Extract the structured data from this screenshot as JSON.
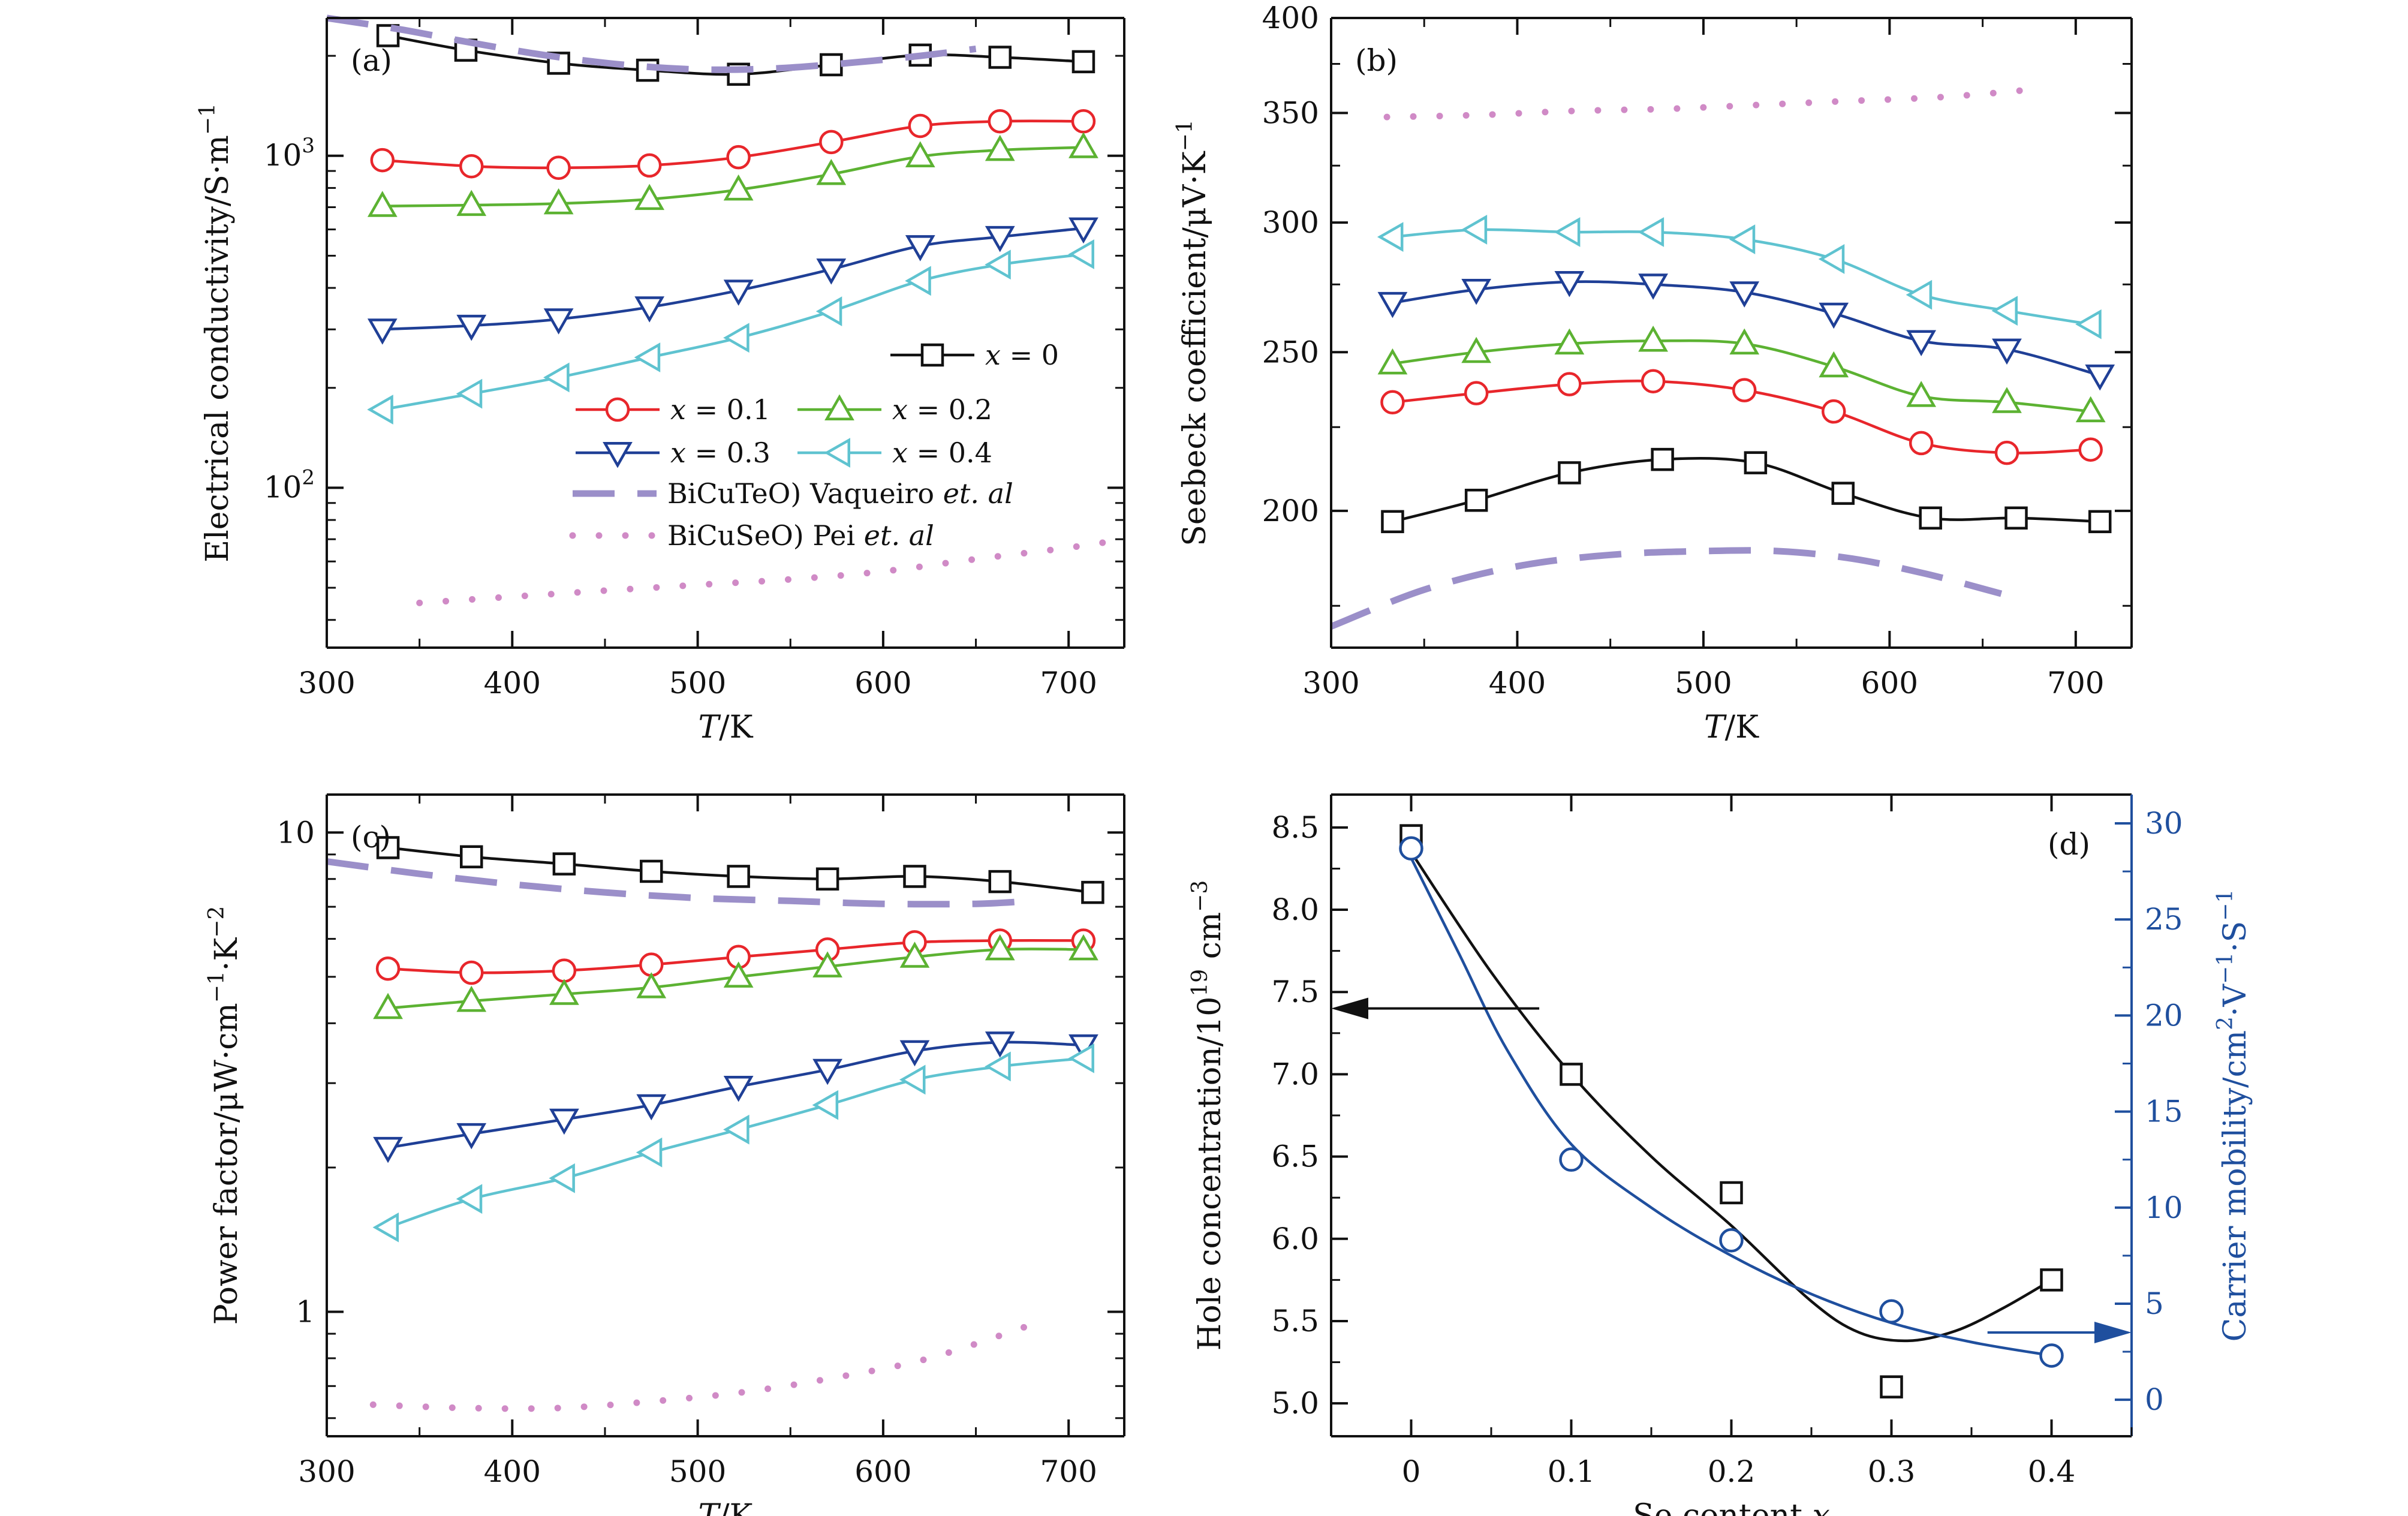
{
  "figure": {
    "colors": {
      "x0": "#111111",
      "x01": "#e8262b",
      "x02": "#5cb232",
      "x03": "#1f3f96",
      "x04": "#5fc3d0",
      "vaqueiro": "#9b8fc9",
      "pei": "#d08ac6",
      "axis_right": "#1f4f9e"
    },
    "legend": [
      {
        "key": "x0",
        "text": "x = 0",
        "marker": "square",
        "style": "solid"
      },
      {
        "key": "x01",
        "text": "x = 0.1",
        "marker": "circle",
        "style": "solid"
      },
      {
        "key": "x02",
        "text": "x = 0.2",
        "marker": "triangle-up",
        "style": "solid"
      },
      {
        "key": "x03",
        "text": "x = 0.3",
        "marker": "triangle-down",
        "style": "solid"
      },
      {
        "key": "x04",
        "text": "x = 0.4",
        "marker": "triangle-left",
        "style": "solid"
      },
      {
        "key": "vaqueiro",
        "text_main": "BiCuTeO) Vaqueiro ",
        "text_ital": "et. al",
        "marker": "none",
        "style": "dashed"
      },
      {
        "key": "pei",
        "text_main": "BiCuSeO) Pei ",
        "text_ital": "et. al",
        "marker": "none",
        "style": "dotted"
      }
    ]
  },
  "chart_data": [
    {
      "panel": "(a)",
      "type": "line",
      "scale_y": "log",
      "xlabel_ital": "T",
      "xlabel_rest": "/K",
      "ylabel": "Electrical conductivity/S·m",
      "ylabel_sup": "−1",
      "xlim": [
        300,
        730
      ],
      "ylim": [
        33,
        2600
      ],
      "xticks": [
        "300",
        "400",
        "500",
        "600",
        "700"
      ],
      "yticks_log": [
        {
          "value": 100,
          "base": "10",
          "exp": "2"
        },
        {
          "value": 1000,
          "base": "10",
          "exp": "3"
        }
      ],
      "series": [
        {
          "key": "x0",
          "x": [
            333,
            375,
            425,
            473,
            522,
            572,
            620,
            663,
            708
          ],
          "y": [
            2300,
            2080,
            1900,
            1810,
            1760,
            1880,
            2010,
            1980,
            1920
          ]
        },
        {
          "key": "x01",
          "x": [
            330,
            378,
            425,
            474,
            522,
            572,
            620,
            663,
            708
          ],
          "y": [
            970,
            930,
            920,
            935,
            990,
            1100,
            1230,
            1270,
            1270
          ]
        },
        {
          "key": "x02",
          "x": [
            330,
            378,
            425,
            474,
            522,
            572,
            620,
            663,
            708
          ],
          "y": [
            705,
            710,
            718,
            740,
            790,
            880,
            995,
            1040,
            1060
          ]
        },
        {
          "key": "x03",
          "x": [
            330,
            378,
            425,
            474,
            522,
            572,
            620,
            663,
            708
          ],
          "y": [
            300,
            308,
            322,
            350,
            393,
            455,
            535,
            570,
            605
          ]
        },
        {
          "key": "x04",
          "x": [
            330,
            378,
            425,
            474,
            522,
            572,
            620,
            663,
            708
          ],
          "y": [
            172,
            192,
            215,
            247,
            283,
            340,
            420,
            470,
            505
          ]
        },
        {
          "key": "vaqueiro",
          "x": [
            300,
            340,
            380,
            420,
            460,
            500,
            540,
            580,
            620,
            650
          ],
          "y": [
            2600,
            2400,
            2180,
            2000,
            1880,
            1820,
            1830,
            1900,
            2000,
            2100
          ]
        },
        {
          "key": "pei",
          "x": [
            350,
            400,
            450,
            500,
            550,
            600,
            650,
            700,
            730
          ],
          "y": [
            45,
            47,
            49,
            51,
            53,
            56,
            61,
            66,
            70
          ]
        }
      ]
    },
    {
      "panel": "(b)",
      "type": "line",
      "scale_y": "log",
      "xlabel_ital": "T",
      "xlabel_rest": "/K",
      "ylabel": "Seebeck coefficient/μV·K",
      "ylabel_sup": "−1",
      "xlim": [
        300,
        730
      ],
      "ylim": [
        165,
        400
      ],
      "xticks": [
        "300",
        "400",
        "500",
        "600",
        "700"
      ],
      "yticks": [
        200,
        250,
        300,
        350,
        400
      ],
      "series": [
        {
          "key": "x0",
          "x": [
            333,
            378,
            428,
            478,
            528,
            575,
            622,
            668,
            713
          ],
          "y": [
            197,
            203,
            211,
            215,
            214,
            205,
            198,
            198,
            197
          ]
        },
        {
          "key": "x01",
          "x": [
            333,
            378,
            428,
            473,
            522,
            570,
            617,
            663,
            708
          ],
          "y": [
            233,
            236,
            239,
            240,
            237,
            230,
            220,
            217,
            218
          ]
        },
        {
          "key": "x02",
          "x": [
            333,
            378,
            428,
            473,
            522,
            570,
            617,
            663,
            708
          ],
          "y": [
            246,
            250,
            253,
            254,
            253,
            245,
            235,
            233,
            230
          ]
        },
        {
          "key": "x03",
          "x": [
            333,
            378,
            428,
            473,
            522,
            570,
            617,
            663,
            713
          ],
          "y": [
            268,
            273,
            276,
            275,
            272,
            264,
            254,
            251,
            242
          ]
        },
        {
          "key": "x04",
          "x": [
            333,
            378,
            428,
            473,
            522,
            570,
            617,
            663,
            708
          ],
          "y": [
            294,
            297,
            296,
            296,
            293,
            285,
            271,
            265,
            260
          ]
        },
        {
          "key": "vaqueiro",
          "x": [
            300,
            350,
            400,
            450,
            500,
            540,
            580,
            620,
            660
          ],
          "y": [
            170,
            179,
            185,
            188,
            189,
            189,
            187,
            183,
            178
          ]
        },
        {
          "key": "pei",
          "x": [
            330,
            380,
            430,
            480,
            530,
            580,
            630,
            680
          ],
          "y": [
            348,
            349,
            351,
            352,
            354,
            356,
            358,
            362
          ]
        }
      ]
    },
    {
      "panel": "(c)",
      "type": "line",
      "scale_y": "log",
      "xlabel_ital": "T",
      "xlabel_rest": "/K",
      "ylabel": "Power factor/μW·cm",
      "ylabel_sup": "−1",
      "ylabel_rest": "·K",
      "ylabel_sup2": "−2",
      "xlim": [
        300,
        730
      ],
      "ylim": [
        0.55,
        12
      ],
      "xticks": [
        "300",
        "400",
        "500",
        "600",
        "700"
      ],
      "yticks": [
        {
          "value": 1,
          "label": "1"
        },
        {
          "value": 10,
          "label": "10"
        }
      ],
      "series": [
        {
          "key": "x0",
          "x": [
            333,
            378,
            428,
            475,
            522,
            570,
            617,
            663,
            713
          ],
          "y": [
            9.3,
            8.9,
            8.6,
            8.3,
            8.1,
            8.0,
            8.1,
            7.9,
            7.5
          ]
        },
        {
          "key": "x01",
          "x": [
            333,
            378,
            428,
            475,
            522,
            570,
            617,
            663,
            708
          ],
          "y": [
            5.2,
            5.1,
            5.15,
            5.3,
            5.5,
            5.7,
            5.9,
            5.95,
            5.95
          ]
        },
        {
          "key": "x02",
          "x": [
            333,
            378,
            428,
            475,
            522,
            570,
            617,
            663,
            708
          ],
          "y": [
            4.3,
            4.45,
            4.6,
            4.75,
            5.0,
            5.25,
            5.5,
            5.7,
            5.7
          ]
        },
        {
          "key": "x03",
          "x": [
            333,
            378,
            428,
            475,
            522,
            570,
            617,
            663,
            708
          ],
          "y": [
            2.2,
            2.35,
            2.52,
            2.7,
            2.95,
            3.2,
            3.5,
            3.65,
            3.6
          ]
        },
        {
          "key": "x04",
          "x": [
            333,
            378,
            428,
            475,
            522,
            570,
            617,
            663,
            708
          ],
          "y": [
            1.5,
            1.72,
            1.9,
            2.15,
            2.4,
            2.7,
            3.05,
            3.25,
            3.38
          ]
        },
        {
          "key": "vaqueiro",
          "x": [
            300,
            350,
            400,
            450,
            500,
            550,
            600,
            650,
            680
          ],
          "y": [
            8.7,
            8.2,
            7.8,
            7.5,
            7.3,
            7.2,
            7.1,
            7.1,
            7.2
          ]
        },
        {
          "key": "pei",
          "x": [
            325,
            375,
            425,
            475,
            525,
            575,
            625,
            680
          ],
          "y": [
            0.64,
            0.63,
            0.63,
            0.65,
            0.68,
            0.73,
            0.8,
            0.94
          ]
        }
      ]
    },
    {
      "panel": "(d)",
      "type": "scatter",
      "xlabel": "Se content ",
      "xlabel_ital": "x",
      "ylabel_left": "Hole concentration/10",
      "ylabel_left_sup": "19",
      "ylabel_left_rest": " cm",
      "ylabel_left_sup2": "−3",
      "ylabel_right": "Carrier mobility/cm",
      "ylabel_right_sup": "2",
      "ylabel_right_rest": "·V",
      "ylabel_right_sup2": "−1",
      "ylabel_right_rest2": "·S",
      "ylabel_right_sup3": "−1",
      "xlim": [
        -0.05,
        0.45
      ],
      "ylim_left": [
        4.8,
        8.7
      ],
      "ylim_right": [
        -1.9,
        31.5
      ],
      "xticks": [
        "0",
        "0.1",
        "0.2",
        "0.3",
        "0.4"
      ],
      "yticks_left": [
        "5.0",
        "5.5",
        "6.0",
        "6.5",
        "7.0",
        "7.5",
        "8.0",
        "8.5"
      ],
      "yticks_right": [
        "0",
        "5",
        "10",
        "15",
        "20",
        "25",
        "30"
      ],
      "series": [
        {
          "name": "hole",
          "axis": "left",
          "x": [
            0,
            0.1,
            0.2,
            0.3,
            0.4
          ],
          "y": [
            8.45,
            7.0,
            6.28,
            5.1,
            5.75
          ]
        },
        {
          "name": "mobility",
          "axis": "right",
          "x": [
            0,
            0.1,
            0.2,
            0.3,
            0.4
          ],
          "y": [
            28.7,
            12.5,
            8.3,
            4.6,
            2.3
          ]
        }
      ],
      "fits": [
        {
          "axis": "left",
          "x": [
            0,
            0.05,
            0.1,
            0.15,
            0.2,
            0.25,
            0.28,
            0.31,
            0.34,
            0.37,
            0.4
          ],
          "y": [
            8.35,
            7.62,
            7.0,
            6.5,
            6.08,
            5.62,
            5.43,
            5.38,
            5.44,
            5.58,
            5.75
          ]
        },
        {
          "axis": "right",
          "x": [
            0,
            0.03,
            0.06,
            0.1,
            0.15,
            0.2,
            0.25,
            0.3,
            0.35,
            0.4
          ],
          "y": [
            28.2,
            23.2,
            18.2,
            13.3,
            10.0,
            7.5,
            5.5,
            4.0,
            3.0,
            2.3
          ]
        }
      ],
      "arrows": [
        {
          "axis": "left",
          "direction": "left",
          "x_from": 0.08,
          "x_to": -0.05,
          "y": 7.4
        },
        {
          "axis": "right",
          "direction": "right",
          "x_from": 0.36,
          "x_to": 0.45,
          "y": 3.5
        }
      ]
    }
  ]
}
